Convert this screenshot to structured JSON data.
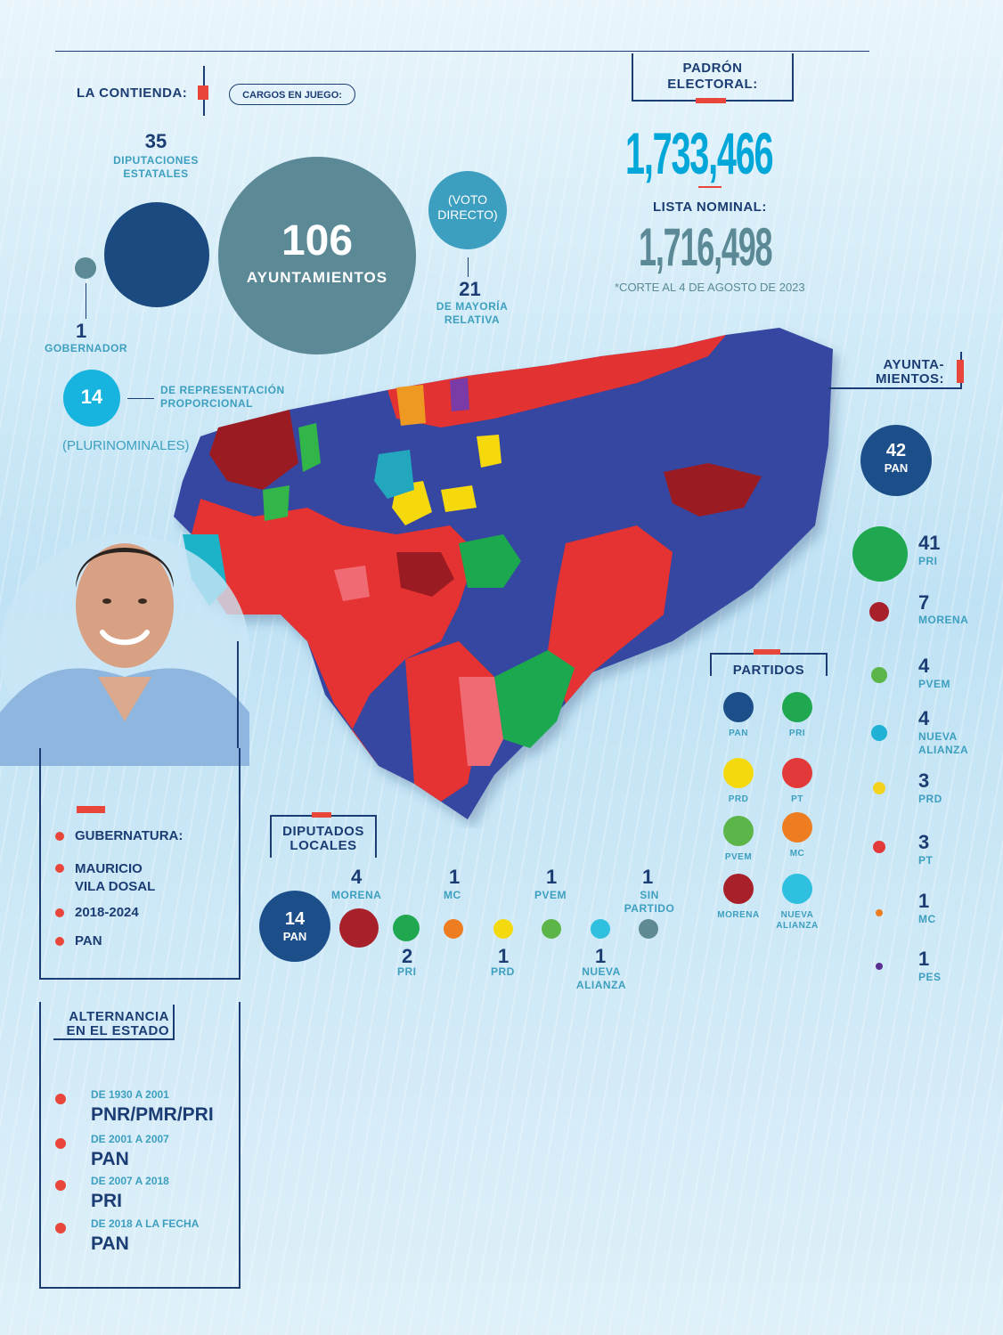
{
  "contienda": {
    "title": "LA CONTIENDA:",
    "cargos_label": "CARGOS EN JUEGO:",
    "diputaciones_count": "35",
    "diputaciones_label_1": "DIPUTACIONES",
    "diputaciones_label_2": "ESTATALES",
    "ayuntamientos_count": "106",
    "ayuntamientos_label": "AYUNTAMIENTOS",
    "voto_1": "(VOTO",
    "voto_2": "DIRECTO)",
    "mayoria_count": "21",
    "mayoria_label_1": "DE MAYORÍA",
    "mayoria_label_2": "RELATIVA",
    "gobernador_count": "1",
    "gobernador_label": "GOBERNADOR",
    "rp_count": "14",
    "rp_label_1": "DE REPRESENTACIÓN",
    "rp_label_2": "PROPORCIONAL",
    "pluri_label": "(PLURINOMINALES)"
  },
  "padron": {
    "title_1": "PADRÓN",
    "title_2": "ELECTORAL:",
    "value": "1,733,466",
    "lista_label": "LISTA NOMINAL:",
    "lista_value": "1,716,498",
    "corte_note": "*CORTE AL 4 DE AGOSTO DE 2023"
  },
  "ayuntamientos_panel": {
    "title_1": "AYUNTA-",
    "title_2": "MIENTOS:",
    "items": [
      {
        "count": "42",
        "party": "PAN",
        "color": "#1c4f8a"
      },
      {
        "count": "41",
        "party": "PRI",
        "color": "#1fa84f"
      },
      {
        "count": "7",
        "party": "MORENA",
        "color": "#a8202a"
      },
      {
        "count": "4",
        "party": "PVEM",
        "color": "#5cb548"
      },
      {
        "count": "4",
        "party_1": "NUEVA",
        "party_2": "ALIANZA",
        "color": "#1fb2d4"
      },
      {
        "count": "3",
        "party": "PRD",
        "color": "#f2d21b"
      },
      {
        "count": "3",
        "party": "PT",
        "color": "#e23a3a"
      },
      {
        "count": "1",
        "party": "MC",
        "color": "#ee7d22"
      },
      {
        "count": "1",
        "party": "PES",
        "color": "#5b2e91"
      }
    ]
  },
  "partidos": {
    "title": "PARTIDOS",
    "items": [
      {
        "name": "PAN",
        "color": "#1c4f8a"
      },
      {
        "name": "PRI",
        "color": "#1fa84f"
      },
      {
        "name": "PRD",
        "color": "#f5d90f"
      },
      {
        "name": "PT",
        "color": "#e23a3a"
      },
      {
        "name": "PVEM",
        "color": "#5cb548"
      },
      {
        "name": "MC",
        "color": "#ee7d22"
      },
      {
        "name": "MORENA",
        "color": "#a8202a"
      },
      {
        "name_1": "NUEVA",
        "name_2": "ALIANZA",
        "color": "#2fc0e0"
      }
    ]
  },
  "diputados": {
    "title_1": "DIPUTADOS",
    "title_2": "LOCALES",
    "pan_count": "14",
    "pan_label": "PAN",
    "items": [
      {
        "count": "4",
        "party": "MORENA",
        "color": "#a8202a"
      },
      {
        "count": "2",
        "party": "PRI",
        "color": "#1fa84f"
      },
      {
        "count": "1",
        "party": "MC",
        "color": "#ee7d22"
      },
      {
        "count": "1",
        "party": "PRD",
        "color": "#f5d90f"
      },
      {
        "count": "1",
        "party": "PVEM",
        "color": "#5cb548"
      },
      {
        "count": "1",
        "party_1": "NUEVA",
        "party_2": "ALIANZA",
        "color": "#2fc0e0"
      },
      {
        "count": "1",
        "party_1": "SIN",
        "party_2": "PARTIDO",
        "color": "#5f8a94"
      }
    ]
  },
  "gubernatura": {
    "items": [
      "GUBERNATURA:",
      "MAURICIO",
      "VILA DOSAL",
      "2018-2024",
      "PAN"
    ]
  },
  "alternancia": {
    "title_1": "ALTERNANCIA",
    "title_2": "EN EL ESTADO",
    "periods": [
      {
        "range": "DE 1930 A 2001",
        "party": "PNR/PMR/PRI"
      },
      {
        "range": "DE 2001 A 2007",
        "party": "PAN"
      },
      {
        "range": "DE 2007 A 2018",
        "party": "PRI"
      },
      {
        "range": "DE 2018 A LA FECHA",
        "party": "PAN"
      }
    ]
  },
  "colors": {
    "navy": "#1b3d73",
    "teal": "#3d9fbf",
    "cyan": "#00a7d8",
    "red_accent": "#e8463a",
    "slate_circle": "#5b8996"
  }
}
